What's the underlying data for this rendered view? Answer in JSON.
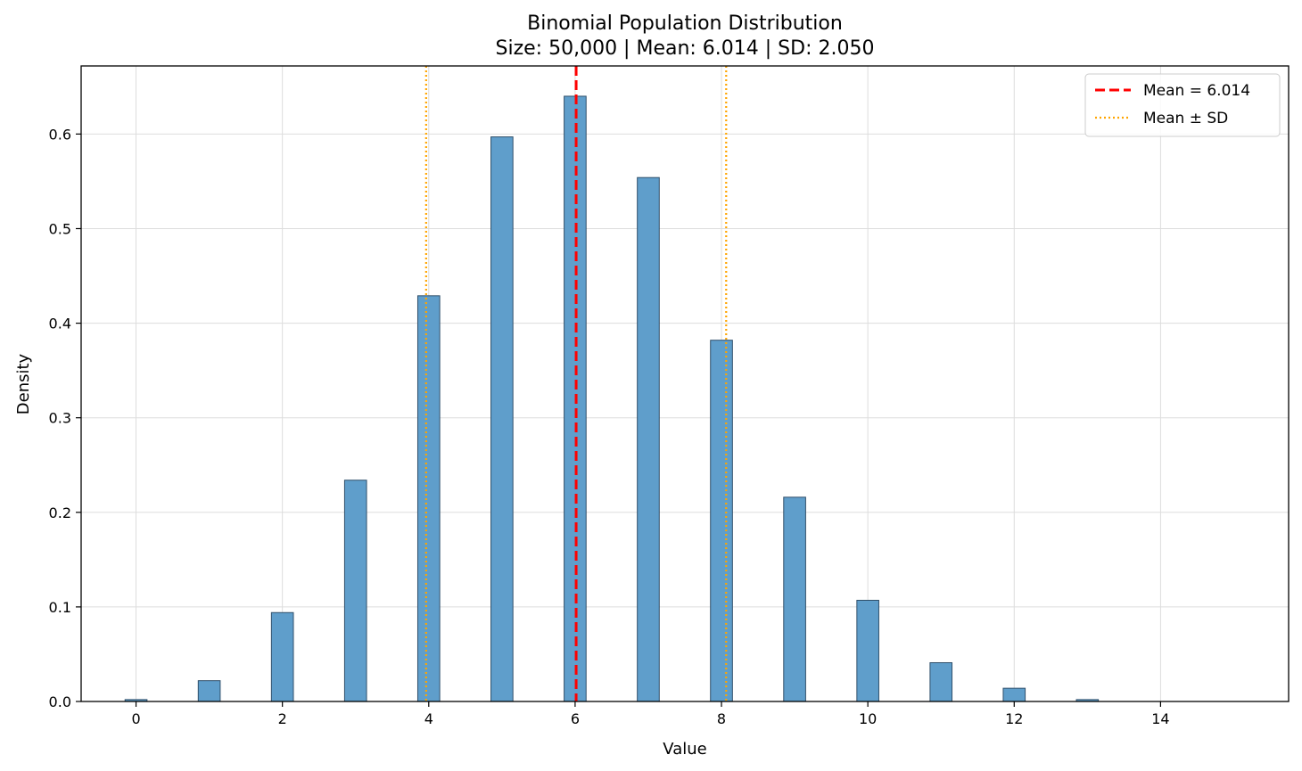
{
  "chart_data": {
    "type": "bar",
    "title": "Binomial Population Distribution",
    "subtitle": "Size: 50,000 | Mean: 6.014 | SD: 2.050",
    "xlabel": "Value",
    "ylabel": "Density",
    "xlim": [
      -0.75,
      15.75
    ],
    "ylim": [
      0,
      0.672
    ],
    "xticks": [
      0,
      2,
      4,
      6,
      8,
      10,
      12,
      14
    ],
    "yticks": [
      0.0,
      0.1,
      0.2,
      0.3,
      0.4,
      0.5,
      0.6
    ],
    "grid": true,
    "legend_position": "top-right",
    "bars": [
      {
        "x": 0,
        "value": 0.002
      },
      {
        "x": 1,
        "value": 0.022
      },
      {
        "x": 2,
        "value": 0.094
      },
      {
        "x": 3,
        "value": 0.234
      },
      {
        "x": 4,
        "value": 0.429
      },
      {
        "x": 5,
        "value": 0.597
      },
      {
        "x": 6,
        "value": 0.64
      },
      {
        "x": 7,
        "value": 0.554
      },
      {
        "x": 8,
        "value": 0.382
      },
      {
        "x": 9,
        "value": 0.216
      },
      {
        "x": 10,
        "value": 0.107
      },
      {
        "x": 11,
        "value": 0.041
      },
      {
        "x": 12,
        "value": 0.014
      },
      {
        "x": 13,
        "value": 0.002
      }
    ],
    "reference_lines": [
      {
        "name": "Mean = 6.014",
        "x": 6.014,
        "style": "dashed",
        "color": "#ff0000"
      },
      {
        "name": "Mean ± SD",
        "x": 3.964,
        "style": "dotted",
        "color": "#ffa500"
      },
      {
        "name": "Mean ± SD",
        "x": 8.064,
        "style": "dotted",
        "color": "#ffa500"
      }
    ],
    "legend": [
      {
        "label": "Mean = 6.014",
        "style": "dashed",
        "color": "#ff0000"
      },
      {
        "label": "Mean ± SD",
        "style": "dotted",
        "color": "#ffa500"
      }
    ],
    "colors": {
      "bar_fill": "#5f9ecb",
      "bar_edge": "#2f4f6a",
      "grid": "#dddddd"
    }
  }
}
